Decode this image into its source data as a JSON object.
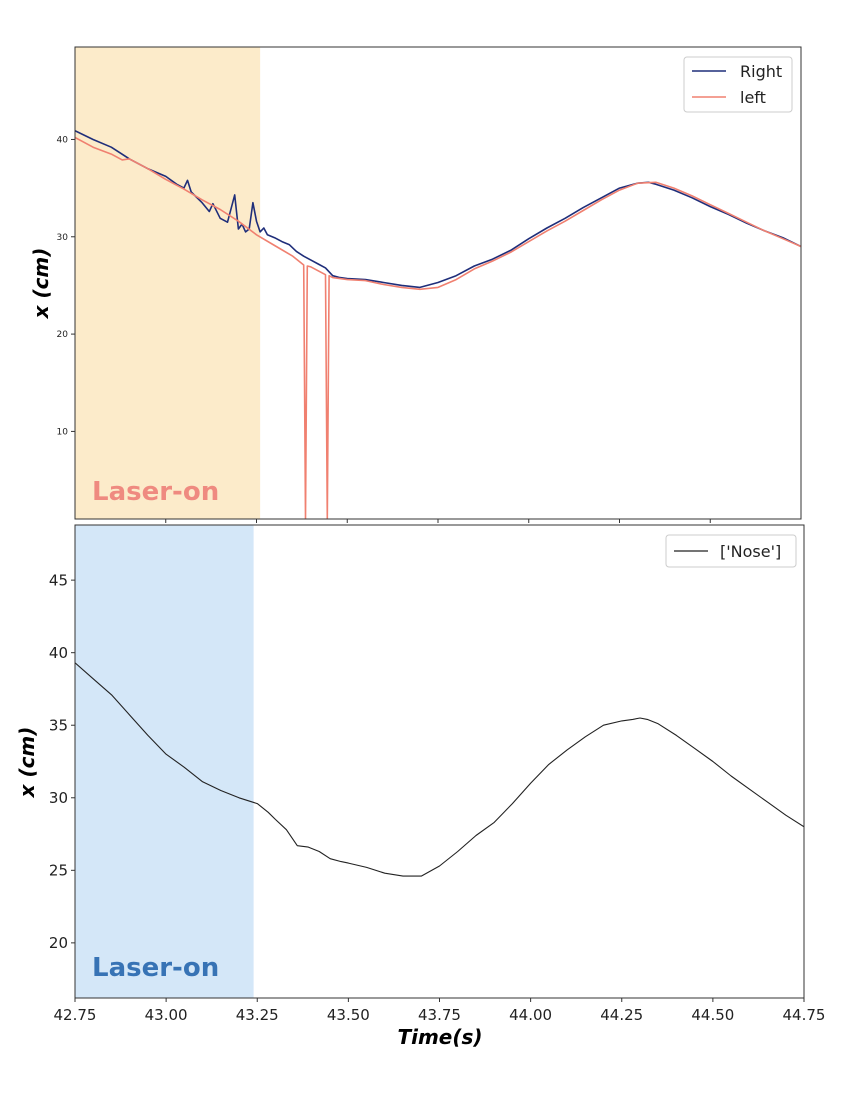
{
  "figure": {
    "x_axis_label": "Time(s)"
  },
  "chart_data": [
    {
      "type": "line",
      "ylabel": "x (cm)",
      "xlim": [
        42.75,
        44.75
      ],
      "ylim": [
        1.0,
        49.5
      ],
      "ytick_values": [
        10,
        20,
        30,
        40
      ],
      "ytick_labels": [
        "10",
        "20",
        "30",
        "40"
      ],
      "xtick_values": [
        43.0,
        43.25,
        43.5,
        43.75,
        44.0,
        44.25,
        44.5
      ],
      "grid": false,
      "legend_position": "top-right",
      "shaded_region": {
        "x_start": 42.75,
        "x_end": 43.26,
        "label": "Laser-on",
        "fill_color": "#fcebca",
        "label_color": "#ef8a80"
      },
      "series": [
        {
          "name": "Right",
          "color": "#1f2e7a",
          "x": [
            42.75,
            42.8,
            42.85,
            42.9,
            42.95,
            43.0,
            43.03,
            43.05,
            43.06,
            43.07,
            43.1,
            43.12,
            43.13,
            43.15,
            43.17,
            43.19,
            43.2,
            43.21,
            43.22,
            43.23,
            43.24,
            43.25,
            43.26,
            43.27,
            43.28,
            43.3,
            43.32,
            43.34,
            43.36,
            43.38,
            43.4,
            43.42,
            43.44,
            43.46,
            43.48,
            43.5,
            43.55,
            43.6,
            43.65,
            43.7,
            43.75,
            43.8,
            43.85,
            43.9,
            43.95,
            44.0,
            44.05,
            44.1,
            44.15,
            44.2,
            44.25,
            44.3,
            44.33,
            44.35,
            44.4,
            44.45,
            44.5,
            44.55,
            44.6,
            44.65,
            44.7,
            44.75
          ],
          "y": [
            40.9,
            40.0,
            39.2,
            38.0,
            37.0,
            36.2,
            35.4,
            35.0,
            35.8,
            34.6,
            33.5,
            32.6,
            33.4,
            31.9,
            31.5,
            34.3,
            30.8,
            31.3,
            30.5,
            30.8,
            33.5,
            31.6,
            30.5,
            30.9,
            30.2,
            29.9,
            29.5,
            29.2,
            28.5,
            28.0,
            27.6,
            27.2,
            26.8,
            26.0,
            25.8,
            25.7,
            25.6,
            25.3,
            25.0,
            24.8,
            25.3,
            26.0,
            27.0,
            27.7,
            28.6,
            29.8,
            30.9,
            31.9,
            33.0,
            34.0,
            35.0,
            35.5,
            35.6,
            35.4,
            34.8,
            34.0,
            33.1,
            32.3,
            31.4,
            30.6,
            29.9,
            29.0
          ]
        },
        {
          "name": "left",
          "color": "#f08070",
          "x": [
            42.75,
            42.8,
            42.85,
            42.88,
            42.9,
            42.95,
            43.0,
            43.05,
            43.1,
            43.15,
            43.2,
            43.25,
            43.3,
            43.35,
            43.38,
            43.385,
            43.39,
            43.4,
            43.44,
            43.445,
            43.45,
            43.46,
            43.5,
            43.55,
            43.6,
            43.65,
            43.7,
            43.75,
            43.8,
            43.85,
            43.9,
            43.95,
            44.0,
            44.05,
            44.1,
            44.15,
            44.2,
            44.25,
            44.3,
            44.35,
            44.4,
            44.45,
            44.5,
            44.55,
            44.6,
            44.65,
            44.7,
            44.75
          ],
          "y": [
            40.2,
            39.2,
            38.5,
            37.9,
            38.0,
            37.0,
            35.9,
            34.9,
            33.8,
            32.8,
            31.6,
            30.2,
            29.1,
            28.0,
            27.1,
            1.0,
            27.0,
            26.9,
            26.1,
            1.0,
            26.0,
            25.8,
            25.6,
            25.5,
            25.1,
            24.8,
            24.6,
            24.8,
            25.6,
            26.7,
            27.5,
            28.4,
            29.5,
            30.6,
            31.6,
            32.7,
            33.8,
            34.8,
            35.5,
            35.6,
            35.0,
            34.2,
            33.3,
            32.4,
            31.5,
            30.6,
            29.8,
            29.0
          ]
        }
      ]
    },
    {
      "type": "line",
      "ylabel": "x (cm)",
      "xlim": [
        42.75,
        44.75
      ],
      "ylim": [
        16.2,
        48.8
      ],
      "ytick_values": [
        20,
        25,
        30,
        35,
        40,
        45
      ],
      "ytick_labels": [
        "20",
        "25",
        "30",
        "35",
        "40",
        "45"
      ],
      "xtick_values": [
        42.75,
        43.0,
        43.25,
        43.5,
        43.75,
        44.0,
        44.25,
        44.5,
        44.75
      ],
      "xtick_labels": [
        "42.75",
        "43.00",
        "43.25",
        "43.50",
        "43.75",
        "44.00",
        "44.25",
        "44.50",
        "44.75"
      ],
      "xlabel": "Time(s)",
      "grid": false,
      "legend_position": "top-right",
      "shaded_region": {
        "x_start": 42.75,
        "x_end": 43.24,
        "label": "Laser-on",
        "fill_color": "#d4e7f8",
        "label_color": "#3773b5"
      },
      "series": [
        {
          "name": "['Nose']",
          "color": "#222222",
          "x": [
            42.75,
            42.8,
            42.85,
            42.9,
            42.95,
            43.0,
            43.05,
            43.1,
            43.15,
            43.2,
            43.25,
            43.28,
            43.3,
            43.33,
            43.36,
            43.39,
            43.42,
            43.45,
            43.48,
            43.5,
            43.55,
            43.6,
            43.65,
            43.7,
            43.75,
            43.8,
            43.85,
            43.9,
            43.95,
            44.0,
            44.05,
            44.1,
            44.15,
            44.2,
            44.25,
            44.28,
            44.3,
            44.32,
            44.35,
            44.4,
            44.45,
            44.5,
            44.55,
            44.6,
            44.65,
            44.7,
            44.75
          ],
          "y": [
            39.3,
            38.2,
            37.1,
            35.7,
            34.3,
            33.0,
            32.1,
            31.1,
            30.5,
            30.0,
            29.6,
            29.0,
            28.5,
            27.8,
            26.7,
            26.6,
            26.3,
            25.8,
            25.6,
            25.5,
            25.2,
            24.8,
            24.6,
            24.6,
            25.3,
            26.3,
            27.4,
            28.3,
            29.6,
            31.0,
            32.3,
            33.3,
            34.2,
            35.0,
            35.3,
            35.4,
            35.5,
            35.4,
            35.1,
            34.3,
            33.4,
            32.5,
            31.5,
            30.6,
            29.7,
            28.8,
            28.0
          ]
        }
      ]
    }
  ]
}
